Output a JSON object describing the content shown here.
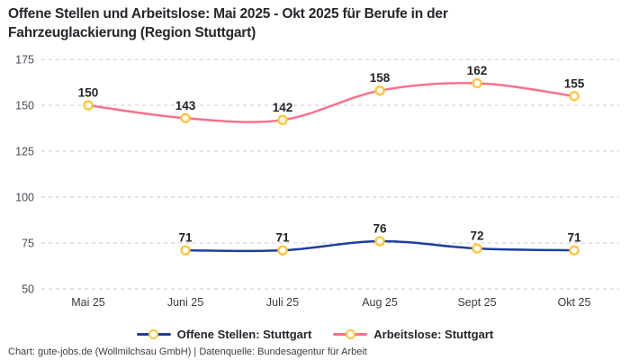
{
  "header": {
    "title_lines": [
      "Offene Stellen und Arbeitslose: Mai 2025 - Okt 2025 für Berufe in der",
      "Fahrzeuglackierung (Region Stuttgart)"
    ]
  },
  "chart_data": {
    "type": "line",
    "title": "Offene Stellen und Arbeitslose: Mai 2025 - Okt 2025 für Berufe in der Fahrzeuglackierung (Region Stuttgart)",
    "categories": [
      "Mai 25",
      "Juni 25",
      "Juli 25",
      "Aug 25",
      "Sept 25",
      "Okt 25"
    ],
    "series": [
      {
        "name": "Offene Stellen: Stuttgart",
        "color": "#1f3f9e",
        "values": [
          null,
          71,
          71,
          76,
          72,
          71
        ]
      },
      {
        "name": "Arbeitslose: Stuttgart",
        "color": "#f9718a",
        "values": [
          150,
          143,
          142,
          158,
          162,
          155
        ]
      }
    ],
    "yticks": [
      50,
      75,
      100,
      125,
      150,
      175
    ],
    "ylim": [
      50,
      183
    ],
    "grid": "dashed-horizontal",
    "legend_position": "bottom",
    "marker": "open-circle",
    "marker_color": "#ffc53d",
    "gridline_color": "#cccccc",
    "background_color": "#ffffff"
  },
  "footer": {
    "text": "Chart: gute-jobs.de (Wollmilchsau GmbH) | Datenquelle: Bundesagentur für Arbeit"
  }
}
